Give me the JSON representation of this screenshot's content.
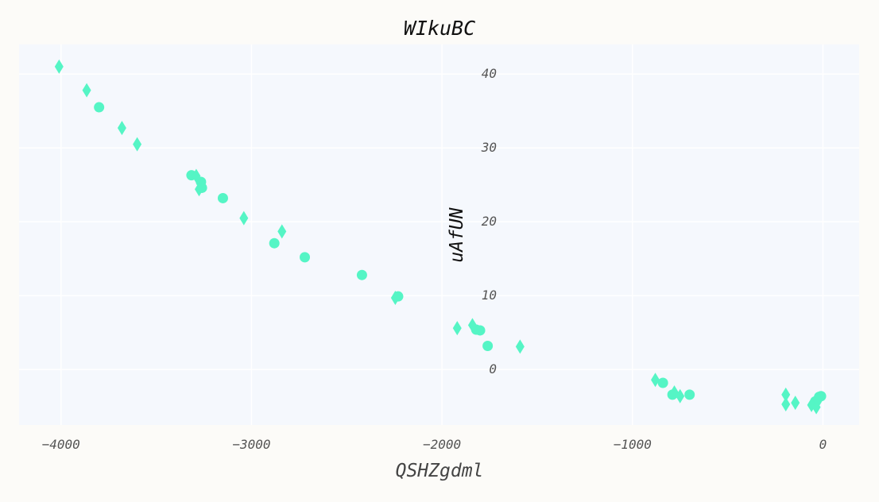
{
  "chart_data": {
    "type": "scatter",
    "title": "WIkuBC",
    "xlabel": "QSHZgdml",
    "ylabel": "uAfUN",
    "xlim": [
      -4220,
      190
    ],
    "ylim": [
      -7.5,
      44
    ],
    "xticks": [
      -4000,
      -3000,
      -2000,
      -1000,
      0
    ],
    "yticks": [
      0,
      10,
      20,
      30,
      40
    ],
    "grid": true,
    "marker_color": "#55f5c5",
    "plot_background": "#f5f8fd",
    "grid_color": "#ffffff",
    "series": [
      {
        "marker": "circle",
        "points": [
          [
            -3800,
            35.5
          ],
          [
            -3315,
            26.3
          ],
          [
            -3265,
            25.4
          ],
          [
            -3260,
            24.6
          ],
          [
            -3150,
            23.2
          ],
          [
            -2880,
            17.1
          ],
          [
            -2720,
            15.2
          ],
          [
            -2420,
            12.8
          ],
          [
            -2230,
            9.9
          ],
          [
            -1820,
            5.4
          ],
          [
            -1800,
            5.3
          ],
          [
            -1760,
            3.2
          ],
          [
            -840,
            -1.8
          ],
          [
            -790,
            -3.4
          ],
          [
            -700,
            -3.4
          ],
          [
            -20,
            -3.7
          ],
          [
            -10,
            -3.6
          ],
          [
            -40,
            -4.3
          ]
        ]
      },
      {
        "marker": "diamond",
        "points": [
          [
            -4010,
            41.0
          ],
          [
            -3865,
            37.8
          ],
          [
            -3680,
            32.7
          ],
          [
            -3600,
            30.5
          ],
          [
            -3290,
            26.2
          ],
          [
            -3275,
            24.4
          ],
          [
            -3040,
            20.5
          ],
          [
            -2840,
            18.7
          ],
          [
            -2245,
            9.7
          ],
          [
            -1920,
            5.6
          ],
          [
            -1840,
            6.0
          ],
          [
            -1590,
            3.1
          ],
          [
            -880,
            -1.4
          ],
          [
            -780,
            -3.1
          ],
          [
            -750,
            -3.6
          ],
          [
            -195,
            -3.4
          ],
          [
            -195,
            -4.7
          ],
          [
            -145,
            -4.5
          ],
          [
            -60,
            -4.8
          ],
          [
            -35,
            -5.1
          ],
          [
            -25,
            -4.2
          ]
        ]
      }
    ]
  }
}
